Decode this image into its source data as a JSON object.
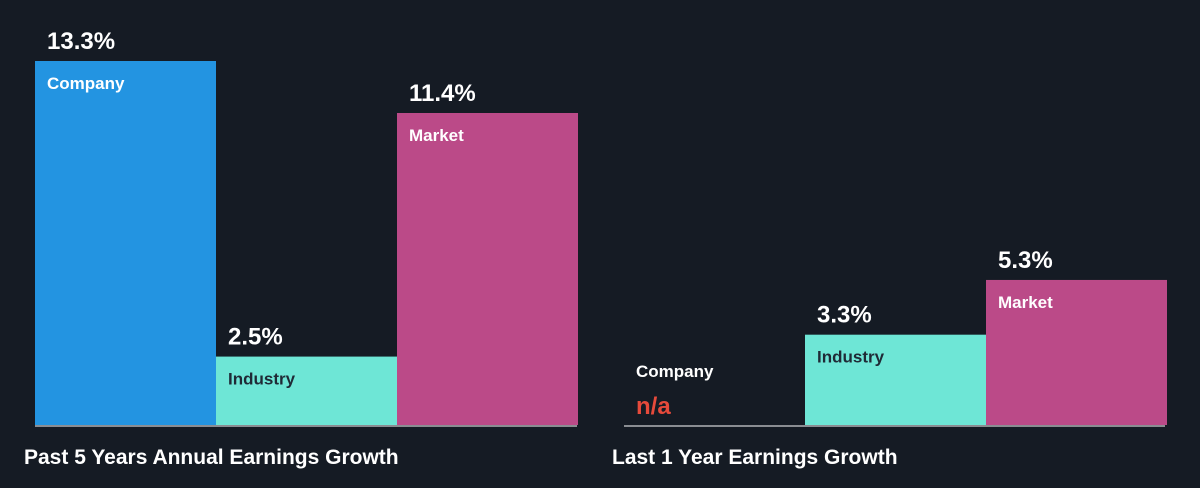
{
  "colors": {
    "background": "#151b24",
    "company": "#2394e1",
    "industry": "#6ee6d6",
    "market": "#bb4a88",
    "baseline": "#ffffff",
    "na": "#e64a3b"
  },
  "chart_data": [
    {
      "type": "bar",
      "title": "Past 5 Years Annual Earnings Growth",
      "categories": [
        "Company",
        "Industry",
        "Market"
      ],
      "values": [
        13.3,
        2.5,
        11.4
      ],
      "value_labels": [
        "13.3%",
        "2.5%",
        "11.4%"
      ],
      "ylim": [
        0,
        13.3
      ]
    },
    {
      "type": "bar",
      "title": "Last 1 Year Earnings Growth",
      "categories": [
        "Company",
        "Industry",
        "Market"
      ],
      "values": [
        null,
        3.3,
        5.3
      ],
      "value_labels": [
        "n/a",
        "3.3%",
        "5.3%"
      ],
      "ylim": [
        0,
        13.3
      ]
    }
  ]
}
